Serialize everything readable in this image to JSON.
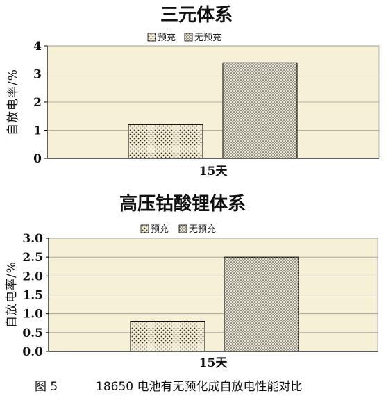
{
  "chart_data": [
    {
      "type": "bar",
      "title": "三元体系",
      "categories": [
        "15天"
      ],
      "series": [
        {
          "name": "预充",
          "values": [
            1.2
          ]
        },
        {
          "name": "无预充",
          "values": [
            3.4
          ]
        }
      ],
      "ylabel": "自放电率/%",
      "ylim": [
        0,
        4
      ],
      "yticks": [
        "0",
        "1",
        "2",
        "3",
        "4"
      ],
      "grid": true,
      "legend": "top-center"
    },
    {
      "type": "bar",
      "title": "高压钴酸锂体系",
      "categories": [
        "15天"
      ],
      "series": [
        {
          "name": "预充",
          "values": [
            0.8
          ]
        },
        {
          "name": "无预充",
          "values": [
            2.5
          ]
        }
      ],
      "ylabel": "自放电率/%",
      "ylim": [
        0,
        3
      ],
      "yticks": [
        "0.0",
        "0.5",
        "1.0",
        "1.5",
        "2.0",
        "2.5",
        "3.0"
      ],
      "grid": true,
      "legend": "top-center"
    }
  ],
  "caption": {
    "label": "图 5",
    "text": "18650 电池有无预化成自放电性能对比"
  },
  "colors": {
    "plot_bg": "#f6f1d6",
    "bar_fill": "#f2ecd2",
    "dot": "#2a2a2a",
    "grid": "#9a9a9a",
    "axis": "#000000"
  }
}
